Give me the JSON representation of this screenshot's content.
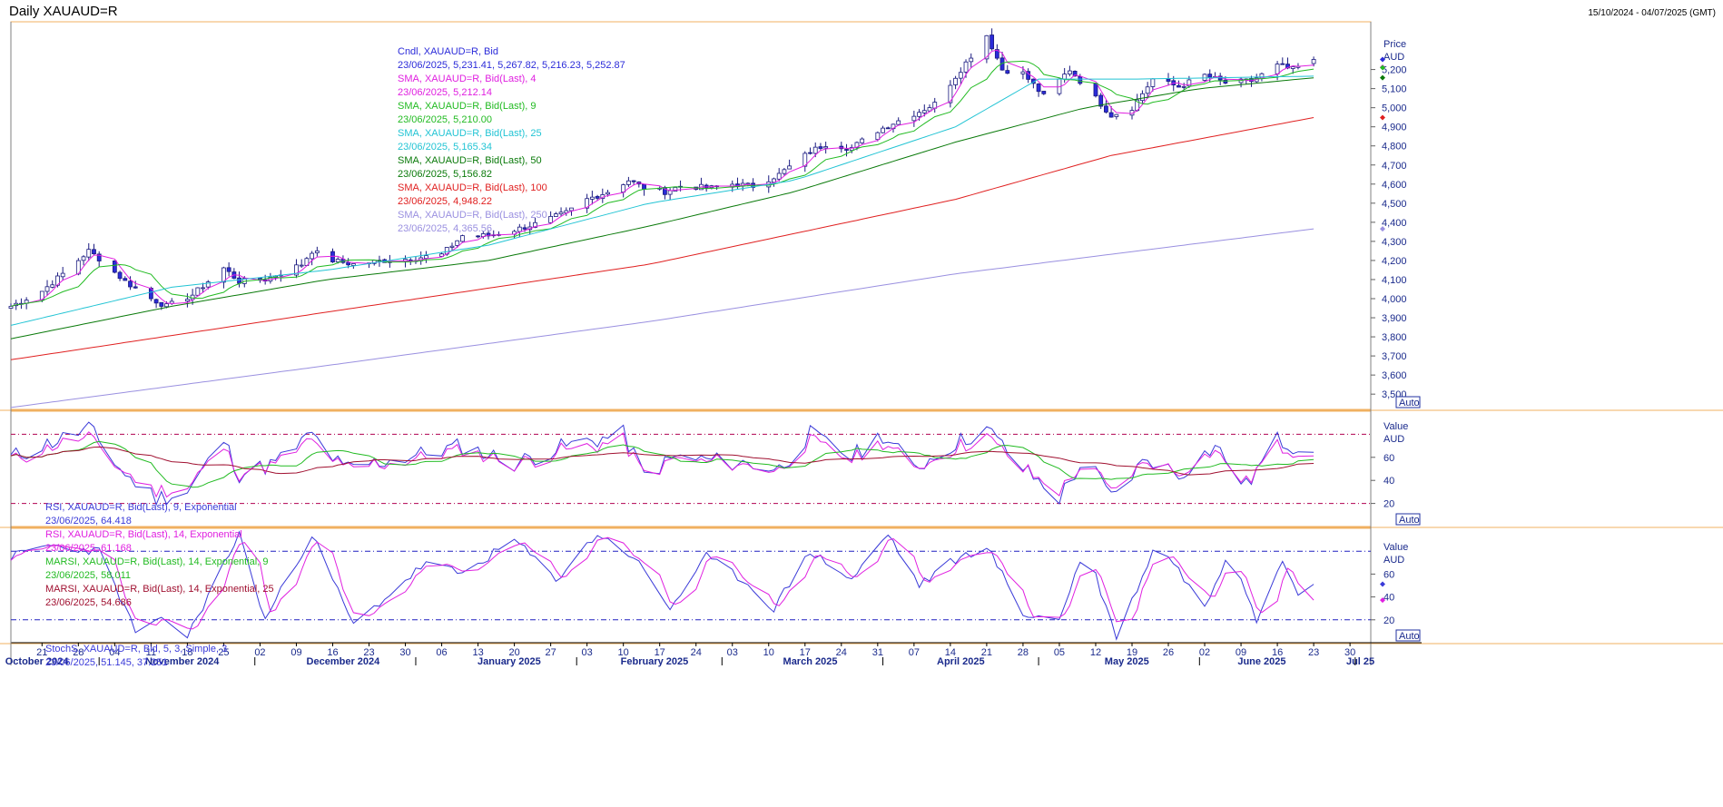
{
  "header": {
    "title": "Daily XAUAUD=R",
    "range": "15/10/2024 - 04/07/2025 (GMT)"
  },
  "colors": {
    "up_candle": "#ffffff",
    "down_candle": "#2b2bd9",
    "wick": "#1a1a80",
    "sma4": "#e020e0",
    "sma9": "#22bb22",
    "sma25": "#22c4d4",
    "sma50": "#0a7a0a",
    "sma100": "#e02020",
    "sma250": "#9a90e0",
    "rsi9": "#3a3ad8",
    "rsi14": "#e020e0",
    "marsi9": "#22bb22",
    "marsi25": "#a01030",
    "stoch_k": "#3a3ad8",
    "stoch_d": "#e020e0",
    "ref_line": "#b00050",
    "stoch_ref": "#2020c0",
    "panel_border": "#f0b060"
  },
  "chart_data": [
    {
      "type": "candlestick",
      "panel": "price",
      "axis_title": "Price",
      "axis_unit": "AUD",
      "auto_label": "Auto",
      "ylim": [
        3420,
        5450
      ],
      "yticks": [
        3500,
        3600,
        3700,
        3800,
        3900,
        4000,
        4100,
        4200,
        4300,
        4400,
        4500,
        4600,
        4700,
        4800,
        4900,
        5000,
        5100,
        5200
      ],
      "ytick_labels": [
        "3,500",
        "3,600",
        "3,700",
        "3,800",
        "3,900",
        "4,000",
        "4,100",
        "4,200",
        "4,300",
        "4,400",
        "4,500",
        "4,600",
        "4,700",
        "4,800",
        "4,900",
        "5,000",
        "5,100",
        "5,200"
      ],
      "x_start": "2024-10-15",
      "x_end": "2025-07-04",
      "close_anchors": [
        [
          "2024-10-15",
          3960
        ],
        [
          "2024-10-21",
          4040
        ],
        [
          "2024-10-25",
          4130
        ],
        [
          "2024-10-30",
          4250
        ],
        [
          "2024-11-01",
          4210
        ],
        [
          "2024-11-06",
          4090
        ],
        [
          "2024-11-11",
          4000
        ],
        [
          "2024-11-14",
          3960
        ],
        [
          "2024-11-19",
          4020
        ],
        [
          "2024-11-25",
          4160
        ],
        [
          "2024-11-28",
          4090
        ],
        [
          "2024-12-03",
          4100
        ],
        [
          "2024-12-10",
          4180
        ],
        [
          "2024-12-12",
          4250
        ],
        [
          "2024-12-16",
          4200
        ],
        [
          "2024-12-20",
          4180
        ],
        [
          "2024-12-26",
          4200
        ],
        [
          "2024-12-31",
          4210
        ],
        [
          "2025-01-06",
          4230
        ],
        [
          "2025-01-10",
          4330
        ],
        [
          "2025-01-15",
          4330
        ],
        [
          "2025-01-20",
          4360
        ],
        [
          "2025-01-24",
          4390
        ],
        [
          "2025-01-30",
          4450
        ],
        [
          "2025-02-03",
          4520
        ],
        [
          "2025-02-07",
          4560
        ],
        [
          "2025-02-11",
          4620
        ],
        [
          "2025-02-14",
          4580
        ],
        [
          "2025-02-18",
          4560
        ],
        [
          "2025-02-21",
          4590
        ],
        [
          "2025-02-27",
          4580
        ],
        [
          "2025-03-03",
          4600
        ],
        [
          "2025-03-07",
          4590
        ],
        [
          "2025-03-12",
          4650
        ],
        [
          "2025-03-18",
          4770
        ],
        [
          "2025-03-21",
          4810
        ],
        [
          "2025-03-26",
          4790
        ],
        [
          "2025-03-31",
          4880
        ],
        [
          "2025-04-03",
          4920
        ],
        [
          "2025-04-08",
          4980
        ],
        [
          "2025-04-11",
          5020
        ],
        [
          "2025-04-16",
          5200
        ],
        [
          "2025-04-21",
          5380
        ],
        [
          "2025-04-24",
          5200
        ],
        [
          "2025-04-28",
          5180
        ],
        [
          "2025-05-02",
          5060
        ],
        [
          "2025-05-07",
          5200
        ],
        [
          "2025-05-12",
          5050
        ],
        [
          "2025-05-15",
          4960
        ],
        [
          "2025-05-19",
          5000
        ],
        [
          "2025-05-23",
          5150
        ],
        [
          "2025-05-28",
          5110
        ],
        [
          "2025-06-02",
          5170
        ],
        [
          "2025-06-06",
          5130
        ],
        [
          "2025-06-11",
          5140
        ],
        [
          "2025-06-16",
          5220
        ],
        [
          "2025-06-19",
          5200
        ],
        [
          "2025-06-23",
          5252.87
        ]
      ],
      "sma_anchors": {
        "sma25": [
          [
            "2024-10-15",
            3860
          ],
          [
            "2024-11-15",
            4060
          ],
          [
            "2024-12-15",
            4150
          ],
          [
            "2025-01-15",
            4280
          ],
          [
            "2025-02-15",
            4500
          ],
          [
            "2025-03-15",
            4620
          ],
          [
            "2025-04-15",
            4900
          ],
          [
            "2025-05-01",
            5150
          ],
          [
            "2025-05-20",
            5150
          ],
          [
            "2025-06-23",
            5165.34
          ]
        ],
        "sma50": [
          [
            "2024-10-15",
            3790
          ],
          [
            "2024-11-15",
            3960
          ],
          [
            "2024-12-15",
            4100
          ],
          [
            "2025-01-15",
            4200
          ],
          [
            "2025-02-15",
            4380
          ],
          [
            "2025-03-15",
            4560
          ],
          [
            "2025-04-15",
            4820
          ],
          [
            "2025-05-10",
            5000
          ],
          [
            "2025-06-01",
            5100
          ],
          [
            "2025-06-23",
            5156.82
          ]
        ],
        "sma100": [
          [
            "2024-10-15",
            3680
          ],
          [
            "2024-12-15",
            3930
          ],
          [
            "2025-02-15",
            4180
          ],
          [
            "2025-04-15",
            4520
          ],
          [
            "2025-05-15",
            4750
          ],
          [
            "2025-06-23",
            4948.22
          ]
        ],
        "sma250": [
          [
            "2024-10-15",
            3430
          ],
          [
            "2024-12-15",
            3650
          ],
          [
            "2025-02-15",
            3880
          ],
          [
            "2025-04-15",
            4130
          ],
          [
            "2025-06-23",
            4365.56
          ]
        ]
      },
      "legend": [
        {
          "name": "Cndl, XAUAUD=R, Bid",
          "value": "23/06/2025, 5,231.41, 5,267.82, 5,216.23, 5,252.87",
          "color": "#2b2bd9"
        },
        {
          "name": "SMA, XAUAUD=R, Bid(Last),  4",
          "value": "23/06/2025, 5,212.14",
          "color": "#e020e0"
        },
        {
          "name": "SMA, XAUAUD=R, Bid(Last),  9",
          "value": "23/06/2025, 5,210.00",
          "color": "#22bb22"
        },
        {
          "name": "SMA, XAUAUD=R, Bid(Last),  25",
          "value": "23/06/2025, 5,165.34",
          "color": "#22c4d4"
        },
        {
          "name": "SMA, XAUAUD=R, Bid(Last),  50",
          "value": "23/06/2025, 5,156.82",
          "color": "#0a7a0a"
        },
        {
          "name": "SMA, XAUAUD=R, Bid(Last),  100",
          "value": "23/06/2025, 4,948.22",
          "color": "#e02020"
        },
        {
          "name": "SMA, XAUAUD=R, Bid(Last),  250",
          "value": "23/06/2025, 4,365.56",
          "color": "#9a90e0"
        }
      ]
    },
    {
      "type": "line",
      "panel": "rsi",
      "axis_title": "Value",
      "axis_unit": "AUD",
      "auto_label": "Auto",
      "ylim": [
        0,
        100
      ],
      "yticks": [
        20,
        40,
        60
      ],
      "ytick_labels": [
        "20",
        "40",
        "60"
      ],
      "ref_lines": [
        80,
        20
      ],
      "rsi_anchors": [
        [
          "2024-10-15",
          60
        ],
        [
          "2024-10-30",
          85
        ],
        [
          "2024-11-06",
          45
        ],
        [
          "2024-11-12",
          25
        ],
        [
          "2024-11-18",
          30
        ],
        [
          "2024-11-25",
          75
        ],
        [
          "2024-11-28",
          45
        ],
        [
          "2024-12-05",
          55
        ],
        [
          "2024-12-12",
          80
        ],
        [
          "2024-12-18",
          50
        ],
        [
          "2024-12-30",
          60
        ],
        [
          "2025-01-10",
          70
        ],
        [
          "2025-01-20",
          55
        ],
        [
          "2025-01-30",
          70
        ],
        [
          "2025-02-10",
          80
        ],
        [
          "2025-02-14",
          45
        ],
        [
          "2025-02-20",
          60
        ],
        [
          "2025-03-05",
          55
        ],
        [
          "2025-03-12",
          50
        ],
        [
          "2025-03-18",
          80
        ],
        [
          "2025-03-26",
          60
        ],
        [
          "2025-04-01",
          80
        ],
        [
          "2025-04-07",
          50
        ],
        [
          "2025-04-14",
          70
        ],
        [
          "2025-04-21",
          85
        ],
        [
          "2025-04-28",
          50
        ],
        [
          "2025-05-05",
          25
        ],
        [
          "2025-05-10",
          60
        ],
        [
          "2025-05-15",
          25
        ],
        [
          "2025-05-22",
          60
        ],
        [
          "2025-05-28",
          45
        ],
        [
          "2025-06-04",
          70
        ],
        [
          "2025-06-10",
          35
        ],
        [
          "2025-06-16",
          75
        ],
        [
          "2025-06-23",
          64.418
        ]
      ],
      "legend": [
        {
          "name": "RSI, XAUAUD=R, Bid(Last),  9, Exponential",
          "value": "23/06/2025, 64.418",
          "color": "#3a3ad8"
        },
        {
          "name": "RSI, XAUAUD=R, Bid(Last),  14, Exponential",
          "value": "23/06/2025, 61.168",
          "color": "#e020e0"
        },
        {
          "name": "MARSI, XAUAUD=R, Bid(Last),  14, Exponential, 9",
          "value": "23/06/2025, 58.011",
          "color": "#22bb22"
        },
        {
          "name": "MARSI, XAUAUD=R, Bid(Last),  14, Exponential, 25",
          "value": "23/06/2025, 54.686",
          "color": "#a01030"
        }
      ]
    },
    {
      "type": "line",
      "panel": "stoch",
      "axis_title": "Value",
      "axis_unit": "AUD",
      "auto_label": "Auto",
      "ylim": [
        0,
        100
      ],
      "yticks": [
        20,
        40,
        60
      ],
      "ytick_labels": [
        "20",
        "40",
        "60"
      ],
      "ref_lines": [
        80,
        20
      ],
      "stoch_anchors": [
        [
          "2024-10-15",
          75
        ],
        [
          "2024-10-22",
          85
        ],
        [
          "2024-11-01",
          80
        ],
        [
          "2024-11-08",
          10
        ],
        [
          "2024-11-14",
          20
        ],
        [
          "2024-11-18",
          5
        ],
        [
          "2024-11-28",
          95
        ],
        [
          "2024-12-03",
          20
        ],
        [
          "2024-12-12",
          95
        ],
        [
          "2024-12-20",
          15
        ],
        [
          "2025-01-03",
          70
        ],
        [
          "2025-01-10",
          60
        ],
        [
          "2025-01-20",
          90
        ],
        [
          "2025-01-28",
          55
        ],
        [
          "2025-02-05",
          95
        ],
        [
          "2025-02-12",
          75
        ],
        [
          "2025-02-19",
          30
        ],
        [
          "2025-02-26",
          75
        ],
        [
          "2025-03-05",
          55
        ],
        [
          "2025-03-11",
          30
        ],
        [
          "2025-03-18",
          80
        ],
        [
          "2025-03-26",
          55
        ],
        [
          "2025-04-02",
          95
        ],
        [
          "2025-04-08",
          50
        ],
        [
          "2025-04-14",
          70
        ],
        [
          "2025-04-21",
          85
        ],
        [
          "2025-04-28",
          25
        ],
        [
          "2025-05-05",
          20
        ],
        [
          "2025-05-10",
          85
        ],
        [
          "2025-05-16",
          5
        ],
        [
          "2025-05-24",
          90
        ],
        [
          "2025-06-02",
          30
        ],
        [
          "2025-06-07",
          85
        ],
        [
          "2025-06-12",
          20
        ],
        [
          "2025-06-17",
          75
        ],
        [
          "2025-06-21",
          35
        ],
        [
          "2025-06-23",
          51.145
        ]
      ],
      "legend": [
        {
          "name": "StochS, XAUAUD=R, Bid,  5, 3, Simple, 3",
          "value": "23/06/2025, 51.145, 37.251",
          "color": "#3a3ad8"
        }
      ]
    }
  ],
  "x_axis": {
    "day_ticks": [
      {
        "label": "21",
        "date": "2024-10-21"
      },
      {
        "label": "28",
        "date": "2024-10-28"
      },
      {
        "label": "04",
        "date": "2024-11-04"
      },
      {
        "label": "11",
        "date": "2024-11-11"
      },
      {
        "label": "18",
        "date": "2024-11-18"
      },
      {
        "label": "25",
        "date": "2024-11-25"
      },
      {
        "label": "02",
        "date": "2024-12-02"
      },
      {
        "label": "09",
        "date": "2024-12-09"
      },
      {
        "label": "16",
        "date": "2024-12-16"
      },
      {
        "label": "23",
        "date": "2024-12-23"
      },
      {
        "label": "30",
        "date": "2024-12-30"
      },
      {
        "label": "06",
        "date": "2025-01-06"
      },
      {
        "label": "13",
        "date": "2025-01-13"
      },
      {
        "label": "20",
        "date": "2025-01-20"
      },
      {
        "label": "27",
        "date": "2025-01-27"
      },
      {
        "label": "03",
        "date": "2025-02-03"
      },
      {
        "label": "10",
        "date": "2025-02-10"
      },
      {
        "label": "17",
        "date": "2025-02-17"
      },
      {
        "label": "24",
        "date": "2025-02-24"
      },
      {
        "label": "03",
        "date": "2025-03-03"
      },
      {
        "label": "10",
        "date": "2025-03-10"
      },
      {
        "label": "17",
        "date": "2025-03-17"
      },
      {
        "label": "24",
        "date": "2025-03-24"
      },
      {
        "label": "31",
        "date": "2025-03-31"
      },
      {
        "label": "07",
        "date": "2025-04-07"
      },
      {
        "label": "14",
        "date": "2025-04-14"
      },
      {
        "label": "21",
        "date": "2025-04-21"
      },
      {
        "label": "28",
        "date": "2025-04-28"
      },
      {
        "label": "05",
        "date": "2025-05-05"
      },
      {
        "label": "12",
        "date": "2025-05-12"
      },
      {
        "label": "19",
        "date": "2025-05-19"
      },
      {
        "label": "26",
        "date": "2025-05-26"
      },
      {
        "label": "02",
        "date": "2025-06-02"
      },
      {
        "label": "09",
        "date": "2025-06-09"
      },
      {
        "label": "16",
        "date": "2025-06-16"
      },
      {
        "label": "23",
        "date": "2025-06-23"
      },
      {
        "label": "30",
        "date": "2025-06-30"
      }
    ],
    "month_labels": [
      {
        "label": "October 2024",
        "date": "2024-10-20"
      },
      {
        "label": "November 2024",
        "date": "2024-11-17"
      },
      {
        "label": "December 2024",
        "date": "2024-12-18"
      },
      {
        "label": "January 2025",
        "date": "2025-01-19"
      },
      {
        "label": "February 2025",
        "date": "2025-02-16"
      },
      {
        "label": "March 2025",
        "date": "2025-03-18"
      },
      {
        "label": "April 2025",
        "date": "2025-04-16"
      },
      {
        "label": "May 2025",
        "date": "2025-05-18"
      },
      {
        "label": "June 2025",
        "date": "2025-06-13"
      },
      {
        "label": "Jul 25",
        "date": "2025-07-02"
      }
    ]
  }
}
